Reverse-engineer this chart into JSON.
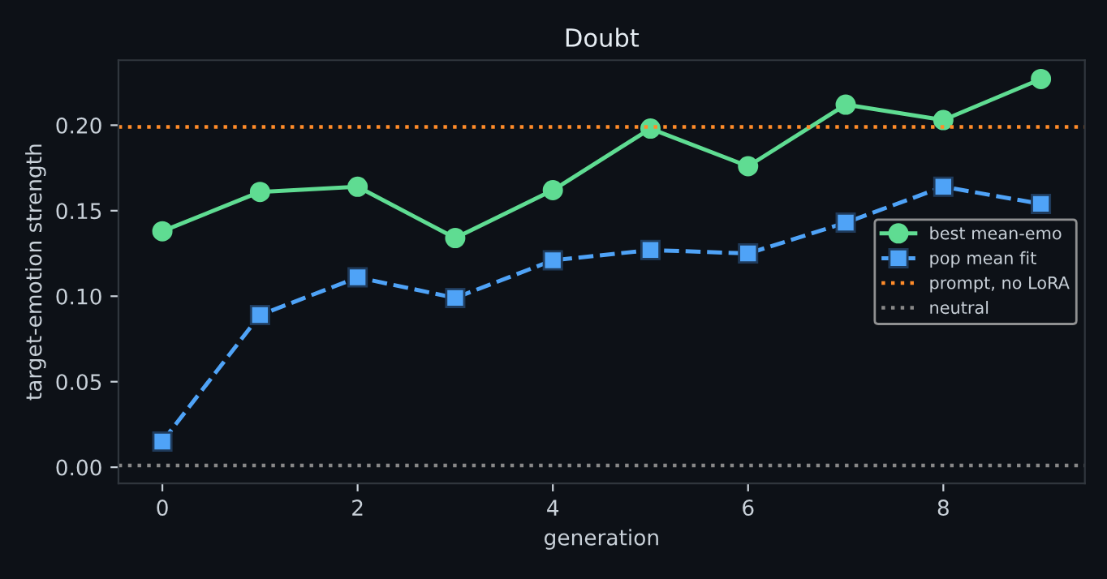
{
  "chart_data": {
    "type": "line",
    "title": "Doubt",
    "xlabel": "generation",
    "ylabel": "target-emotion strength",
    "x": [
      0,
      1,
      2,
      3,
      4,
      5,
      6,
      7,
      8,
      9
    ],
    "series": [
      {
        "name": "best mean-emo",
        "color": "#5fdc92",
        "marker": "circle",
        "line_style": "solid",
        "values": [
          0.138,
          0.161,
          0.164,
          0.134,
          0.162,
          0.198,
          0.176,
          0.212,
          0.203,
          0.227
        ]
      },
      {
        "name": "pop mean fit",
        "color": "#4fa3f7",
        "marker": "square",
        "line_style": "dashed",
        "values": [
          0.015,
          0.089,
          0.111,
          0.099,
          0.121,
          0.127,
          0.125,
          0.143,
          0.164,
          0.154
        ]
      }
    ],
    "ref_lines": [
      {
        "axis": "y",
        "value": 0.199,
        "label": "prompt, no LoRA",
        "color": "#ff8c2a",
        "line_style": "dotted"
      },
      {
        "axis": "y",
        "value": 0.001,
        "label": "neutral",
        "color": "#888888",
        "line_style": "dotted"
      }
    ],
    "xlim": [
      -0.45,
      9.45
    ],
    "ylim": [
      -0.0095,
      0.238
    ],
    "xticks": [
      0,
      2,
      4,
      6,
      8
    ],
    "yticks": [
      {
        "value": 0,
        "label": "0.00"
      },
      {
        "value": 0.05,
        "label": "0.05"
      },
      {
        "value": 0.1,
        "label": "0.10"
      },
      {
        "value": 0.15,
        "label": "0.15"
      },
      {
        "value": 0.2,
        "label": "0.20"
      }
    ],
    "grid": false,
    "legend": "center right"
  }
}
